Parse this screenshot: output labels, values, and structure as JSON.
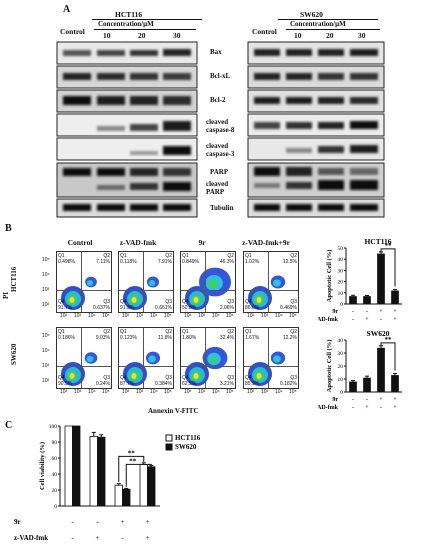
{
  "panelA": {
    "label": "A",
    "hct": {
      "cell_line": "HCT116",
      "control": "Control",
      "concentration": "Concentration/μM",
      "doses": [
        "10",
        "20",
        "30"
      ]
    },
    "sw": {
      "cell_line": "SW620",
      "control": "Control",
      "concentration": "Concentration/μM",
      "doses": [
        "10",
        "20",
        "30"
      ]
    },
    "proteins": [
      "Bax",
      "Bcl-xL",
      "Bcl-2",
      "cleaved caspase-8",
      "cleaved caspase-3",
      "PARP",
      "cleaved PARP",
      "Tubulin"
    ]
  },
  "panelB": {
    "label": "B",
    "conditions": [
      "Control",
      "z-VAD-fmk",
      "9r",
      "z-VAD-fmk+9r"
    ],
    "rows": [
      "HCT116",
      "SW620"
    ],
    "y_axis": "PI",
    "x_axis": "Annexin V-FITC",
    "quadrants": [
      [
        {
          "ul": "0.498%",
          "ur": "7.11%",
          "ll": "91.7%",
          "lr": "0.637%"
        },
        {
          "ul": "0.118%",
          "ur": "7.91%",
          "ll": "91.3%",
          "lr": "0.661%"
        },
        {
          "ul": "0.849%",
          "ur": "46.3%",
          "ll": "50.8%",
          "lr": "2.06%"
        },
        {
          "ul": "1.02%",
          "ur": "12.5%",
          "ll": "86.0%",
          "lr": "0.469%"
        }
      ],
      [
        {
          "ul": "0.186%",
          "ur": "9.03%",
          "ll": "90.5%",
          "lr": "0.24%"
        },
        {
          "ul": "0.123%",
          "ur": "11.8%",
          "ll": "87.7%",
          "lr": "0.384%"
        },
        {
          "ul": "1.80%",
          "ur": "32.4%",
          "ll": "62.5%",
          "lr": "3.21%"
        },
        {
          "ul": "1.67%",
          "ur": "12.2%",
          "ll": "85.9%",
          "lr": "0.182%"
        }
      ]
    ],
    "quadrant_names": {
      "ul": "Q1",
      "ur": "Q2",
      "ll": "Q4",
      "lr": "Q3"
    },
    "tick_labels": [
      "10²",
      "10³",
      "10⁴",
      "10⁵"
    ]
  },
  "chart_data": [
    {
      "type": "bar",
      "title": "HCT116",
      "ylabel": "Apoptotic Cell (%)",
      "ylim": [
        0,
        50
      ],
      "yticks": [
        "0",
        "10",
        "20",
        "30",
        "40",
        "50"
      ],
      "values": [
        7,
        7,
        45,
        12
      ],
      "errors": [
        0.8,
        0.6,
        1.5,
        1.0
      ],
      "rows": [
        {
          "name": "9r",
          "marks": [
            "-",
            "-",
            "+",
            "+"
          ]
        },
        {
          "name": "z-VAD-fmk",
          "marks": [
            "-",
            "+",
            "-",
            "+"
          ]
        }
      ],
      "significance": "**"
    },
    {
      "type": "bar",
      "title": "SW620",
      "ylabel": "Apoptotic Cell (%)",
      "ylim": [
        0,
        40
      ],
      "yticks": [
        "0",
        "10",
        "20",
        "30",
        "40"
      ],
      "values": [
        8,
        11,
        34,
        13
      ],
      "errors": [
        0.8,
        1.2,
        1.5,
        1.2
      ],
      "rows": [
        {
          "name": "9r",
          "marks": [
            "-",
            "-",
            "+",
            "+"
          ]
        },
        {
          "name": "z-VAD-fmk",
          "marks": [
            "-",
            "+",
            "-",
            "+"
          ]
        }
      ],
      "significance": "**"
    },
    {
      "type": "bar",
      "label": "C",
      "ylabel": "Cell viability (%)",
      "ylim": [
        0,
        100
      ],
      "yticks": [
        "0",
        "20",
        "40",
        "60",
        "80",
        "100"
      ],
      "series": [
        {
          "name": "HCT116",
          "values": [
            100,
            87,
            26,
            52
          ],
          "errors": [
            0,
            5,
            2,
            2
          ],
          "fill": "#ffffff"
        },
        {
          "name": "SW620",
          "values": [
            100,
            86,
            21,
            49
          ],
          "errors": [
            0,
            3,
            1,
            1.5
          ],
          "fill": "#111111"
        }
      ],
      "rows": [
        {
          "name": "9r",
          "marks": [
            "-",
            "-",
            "+",
            "+"
          ]
        },
        {
          "name": "z-VAD-fmk",
          "marks": [
            "-",
            "+",
            "-",
            "+"
          ]
        }
      ],
      "significance": [
        "**",
        "**"
      ]
    }
  ]
}
